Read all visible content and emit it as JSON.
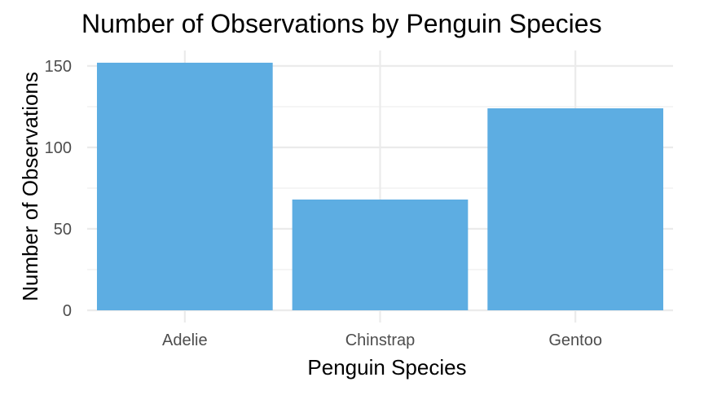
{
  "chart_data": {
    "type": "bar",
    "title": "Number of Observations by Penguin Species",
    "xlabel": "Penguin Species",
    "ylabel": "Number of Observations",
    "categories": [
      "Adelie",
      "Chinstrap",
      "Gentoo"
    ],
    "values": [
      152,
      68,
      124
    ],
    "ylim": [
      0,
      160
    ],
    "yticks": [
      0,
      50,
      100,
      150
    ],
    "grid": true,
    "legend": "none",
    "bar_color": "#5DADE2"
  }
}
